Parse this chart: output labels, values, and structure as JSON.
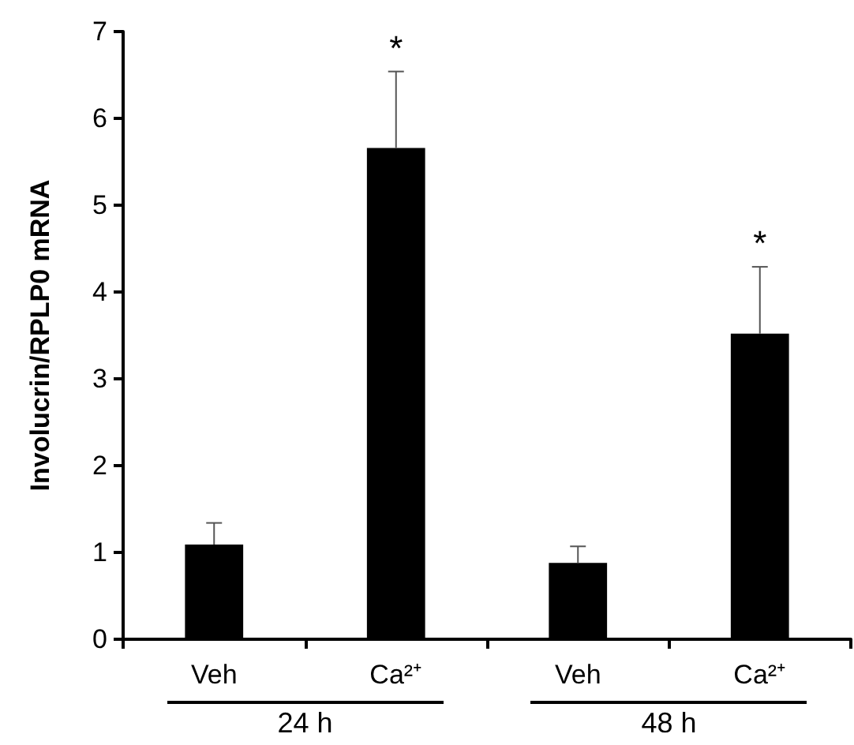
{
  "chart_data": {
    "type": "bar",
    "ylabel": "Involucrin/RPLP0 mRNA",
    "categories": [
      "Veh",
      "Ca²⁺",
      "Veh",
      "Ca²⁺"
    ],
    "values": [
      1.09,
      5.66,
      0.88,
      3.52
    ],
    "errors": [
      [
        1.09,
        1.34
      ],
      [
        5.66,
        6.54
      ],
      [
        0.88,
        1.07
      ],
      [
        3.52,
        4.29
      ]
    ],
    "value_labels": [
      null,
      "*",
      null,
      "*"
    ],
    "color": "#000000",
    "ylim": [
      0,
      7
    ],
    "yticks": [
      0,
      1,
      2,
      3,
      4,
      5,
      6,
      7
    ],
    "annotations": [
      "24 h",
      "48 h"
    ],
    "grid": false
  }
}
